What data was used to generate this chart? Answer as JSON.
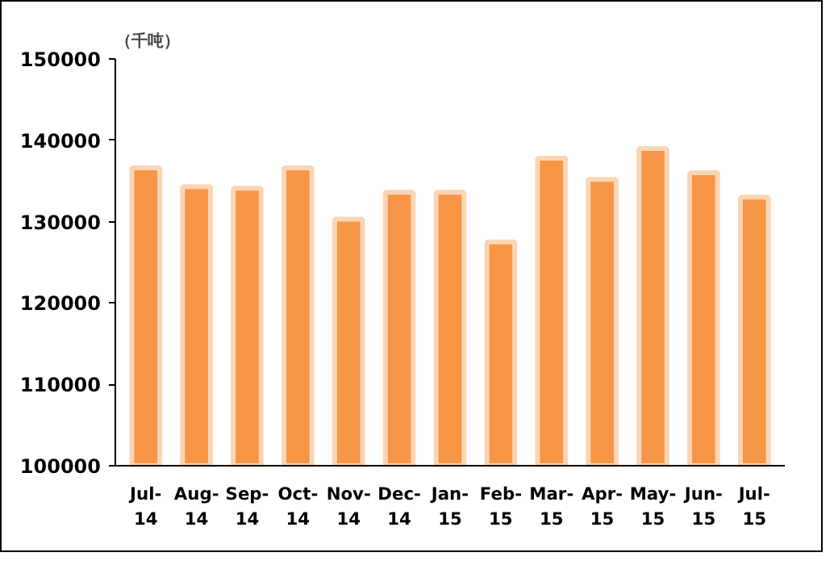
{
  "chart_data": {
    "type": "bar",
    "ylabel": "（千吨）",
    "categories": [
      "Jul-14",
      "Aug-14",
      "Sep-14",
      "Oct-14",
      "Nov-14",
      "Dec-14",
      "Jan-15",
      "Feb-15",
      "Mar-15",
      "Apr-15",
      "May-15",
      "Jun-15",
      "Jul-15"
    ],
    "values": [
      136600,
      134300,
      134100,
      136600,
      130300,
      133600,
      133600,
      127500,
      137800,
      135200,
      139000,
      136000,
      133000
    ],
    "color": "#f79646",
    "ylim": [
      100000,
      150000
    ],
    "yticks": [
      100000,
      110000,
      120000,
      130000,
      140000,
      150000
    ],
    "grid": false
  }
}
